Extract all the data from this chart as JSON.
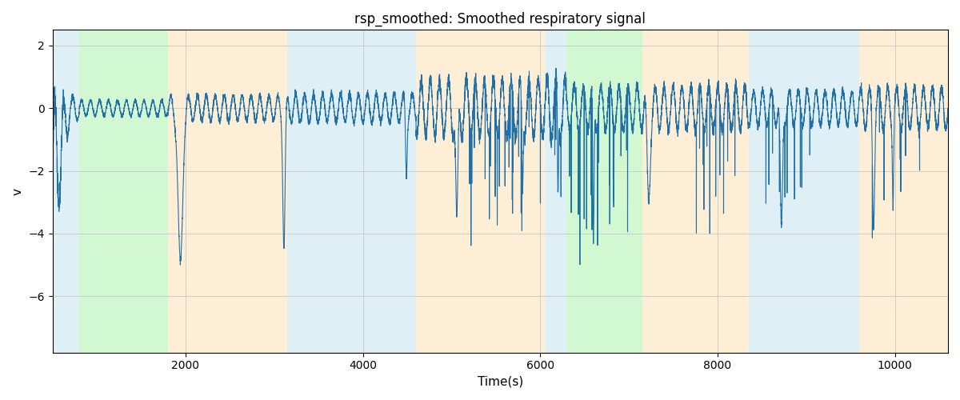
{
  "title": "rsp_smoothed: Smoothed respiratory signal",
  "xlabel": "Time(s)",
  "ylabel": "v",
  "xlim": [
    500,
    10600
  ],
  "ylim": [
    -7.8,
    2.5
  ],
  "yticks": [
    2,
    0,
    -2,
    -4,
    -6
  ],
  "xticks": [
    2000,
    4000,
    6000,
    8000,
    10000
  ],
  "signal_color": "#1f6fa8",
  "signal_linewidth": 0.8,
  "background_color": "#ffffff",
  "grid_color": "#cccccc",
  "regions": [
    {
      "xmin": 500,
      "xmax": 800,
      "color": "#add8e6",
      "alpha": 0.4
    },
    {
      "xmin": 800,
      "xmax": 1800,
      "color": "#90ee90",
      "alpha": 0.4
    },
    {
      "xmin": 1800,
      "xmax": 3150,
      "color": "#ffd59a",
      "alpha": 0.4
    },
    {
      "xmin": 3150,
      "xmax": 4600,
      "color": "#add8e6",
      "alpha": 0.4
    },
    {
      "xmin": 4600,
      "xmax": 6050,
      "color": "#ffd59a",
      "alpha": 0.4
    },
    {
      "xmin": 6050,
      "xmax": 6300,
      "color": "#add8e6",
      "alpha": 0.4
    },
    {
      "xmin": 6300,
      "xmax": 7150,
      "color": "#90ee90",
      "alpha": 0.4
    },
    {
      "xmin": 7150,
      "xmax": 8350,
      "color": "#ffd59a",
      "alpha": 0.4
    },
    {
      "xmin": 8350,
      "xmax": 9600,
      "color": "#add8e6",
      "alpha": 0.4
    },
    {
      "xmin": 9600,
      "xmax": 10600,
      "color": "#ffd59a",
      "alpha": 0.4
    }
  ],
  "seed": 42,
  "n_points": 10000,
  "t_start": 500,
  "t_end": 10600
}
